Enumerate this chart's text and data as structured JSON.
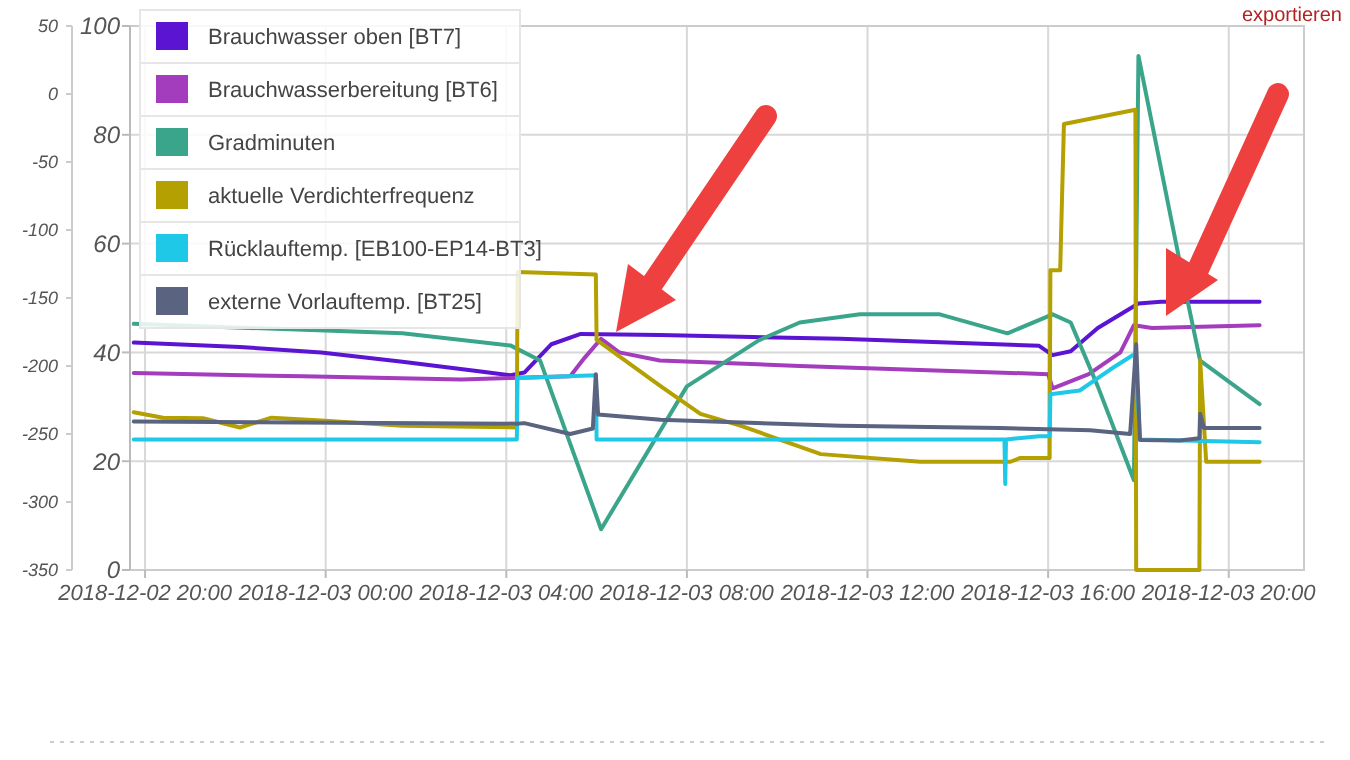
{
  "chart_data": {
    "type": "line",
    "xlim": [
      "2018-12-02T19:40",
      "2018-12-03T21:40"
    ],
    "xticks": [
      {
        "value": "2018-12-02T20:00",
        "label": "2018-12-02 20:00"
      },
      {
        "value": "2018-12-03T00:00",
        "label": "2018-12-03 00:00"
      },
      {
        "value": "2018-12-03T04:00",
        "label": "2018-12-03 04:00"
      },
      {
        "value": "2018-12-03T08:00",
        "label": "2018-12-03 08:00"
      },
      {
        "value": "2018-12-03T12:00",
        "label": "2018-12-03 12:00"
      },
      {
        "value": "2018-12-03T16:00",
        "label": "2018-12-03 16:00"
      },
      {
        "value": "2018-12-03T20:00",
        "label": "2018-12-03 20:00"
      }
    ],
    "ylim": [
      0,
      100
    ],
    "yticks": [
      0,
      20,
      40,
      60,
      80,
      100
    ],
    "y2lim": [
      -350,
      50
    ],
    "y2ticks": [
      -350,
      -300,
      -250,
      -200,
      -150,
      -100,
      -50,
      0,
      50
    ],
    "grid": true,
    "legend": "top left",
    "annotations": [
      "exportieren"
    ],
    "series": [
      {
        "name": "Brauchwasser oben [BT7]",
        "color": "#5a14d2",
        "x": [
          "2018-12-02T19:45",
          "2018-12-02T22:06",
          "2018-12-02T23:54",
          "2018-12-03T01:42",
          "2018-12-03T03:26",
          "2018-12-03T04:06",
          "2018-12-03T04:24",
          "2018-12-03T05:00",
          "2018-12-03T05:39",
          "2018-12-03T07:24",
          "2018-12-03T11:24",
          "2018-12-03T15:48",
          "2018-12-03T16:06",
          "2018-12-03T16:30",
          "2018-12-03T17:06",
          "2018-12-03T18:00",
          "2018-12-03T18:30",
          "2018-12-03T20:41"
        ],
        "values": [
          41.8,
          41.0,
          40.0,
          38.3,
          36.5,
          35.8,
          36.3,
          41.5,
          43.4,
          43.2,
          42.5,
          41.2,
          39.5,
          40.2,
          44.5,
          49.0,
          49.3,
          49.3
        ]
      },
      {
        "name": "Brauchwasserbereitung [BT6]",
        "color": "#a43cbe",
        "x": [
          "2018-12-02T19:45",
          "2018-12-02T23:30",
          "2018-12-03T03:00",
          "2018-12-03T04:06",
          "2018-12-03T05:25",
          "2018-12-03T05:44",
          "2018-12-03T06:06",
          "2018-12-03T06:30",
          "2018-12-03T07:24",
          "2018-12-03T10:30",
          "2018-12-03T16:00",
          "2018-12-03T16:06",
          "2018-12-03T16:54",
          "2018-12-03T17:36",
          "2018-12-03T17:54",
          "2018-12-03T18:18",
          "2018-12-03T20:41"
        ],
        "values": [
          36.2,
          35.6,
          35.0,
          35.3,
          35.6,
          39.0,
          42.5,
          40.0,
          38.5,
          37.5,
          36.0,
          33.4,
          36.0,
          40.0,
          45.0,
          44.5,
          45.0
        ]
      },
      {
        "name": "Gradminuten",
        "color": "#3aa58a",
        "axis": "y2",
        "x": [
          "2018-12-02T19:45",
          "2018-12-03T01:42",
          "2018-12-03T04:06",
          "2018-12-03T04:45",
          "2018-12-03T06:06",
          "2018-12-03T08:00",
          "2018-12-03T09:36",
          "2018-12-03T10:30",
          "2018-12-03T11:50",
          "2018-12-03T13:36",
          "2018-12-03T15:06",
          "2018-12-03T16:06",
          "2018-12-03T16:30",
          "2018-12-03T17:06",
          "2018-12-03T17:54",
          "2018-12-03T18:00",
          "2018-12-03T19:06",
          "2018-12-03T19:22",
          "2018-12-03T20:41"
        ],
        "values": [
          -169,
          -176,
          -185,
          -196,
          -320,
          -215,
          -181,
          -168,
          -162,
          -162,
          -176,
          -162,
          -168,
          -215,
          -284,
          28,
          -154,
          -196,
          -228
        ]
      },
      {
        "name": "aktuelle Verdichterfrequenz",
        "color": "#b4a000",
        "x": [
          "2018-12-02T19:45",
          "2018-12-02T20:24",
          "2018-12-02T21:17",
          "2018-12-02T22:06",
          "2018-12-02T22:48",
          "2018-12-02T23:54",
          "2018-12-03T01:42",
          "2018-12-03T04:14",
          "2018-12-03T04:15",
          "2018-12-03T05:59",
          "2018-12-03T06:00",
          "2018-12-03T07:25",
          "2018-12-03T08:18",
          "2018-12-03T09:12",
          "2018-12-03T10:58",
          "2018-12-03T13:10",
          "2018-12-03T15:10",
          "2018-12-03T15:23",
          "2018-12-03T16:02",
          "2018-12-03T16:03",
          "2018-12-03T16:16",
          "2018-12-03T16:21",
          "2018-12-03T17:56",
          "2018-12-03T17:57",
          "2018-12-03T19:21",
          "2018-12-03T19:22",
          "2018-12-03T19:30",
          "2018-12-03T20:41"
        ],
        "values": [
          29.0,
          28.0,
          27.9,
          26.2,
          28.0,
          27.5,
          26.5,
          26.2,
          54.8,
          54.3,
          42.3,
          33.8,
          28.7,
          26.5,
          21.3,
          19.9,
          19.9,
          20.6,
          20.6,
          55.1,
          55.1,
          82.0,
          84.6,
          0,
          0,
          38.6,
          19.9,
          19.9
        ]
      },
      {
        "name": "Rücklauftemp. [EB100-EP14-BT3]",
        "color": "#1ec8e6",
        "x": [
          "2018-12-02T19:45",
          "2018-12-03T04:14",
          "2018-12-03T04:15",
          "2018-12-03T05:59",
          "2018-12-03T06:00",
          "2018-12-03T15:02",
          "2018-12-03T15:03",
          "2018-12-03T15:04",
          "2018-12-03T15:48",
          "2018-12-03T16:02",
          "2018-12-03T16:03",
          "2018-12-03T16:42",
          "2018-12-03T17:22",
          "2018-12-03T17:56",
          "2018-12-03T18:02",
          "2018-12-03T20:41"
        ],
        "values": [
          24.0,
          24.0,
          35.3,
          35.8,
          24.0,
          24.0,
          15.8,
          24.0,
          24.6,
          24.6,
          32.3,
          33.0,
          36.8,
          39.8,
          24.0,
          23.5
        ]
      },
      {
        "name": "externe Vorlauftemp. [BT25]",
        "color": "#5a6480",
        "x": [
          "2018-12-02T19:45",
          "2018-12-03T04:14",
          "2018-12-03T04:24",
          "2018-12-03T05:25",
          "2018-12-03T05:55",
          "2018-12-03T05:59",
          "2018-12-03T06:02",
          "2018-12-03T07:25",
          "2018-12-03T11:24",
          "2018-12-03T14:56",
          "2018-12-03T16:56",
          "2018-12-03T17:49",
          "2018-12-03T17:57",
          "2018-12-03T18:02",
          "2018-12-03T18:55",
          "2018-12-03T19:21",
          "2018-12-03T19:22",
          "2018-12-03T19:27",
          "2018-12-03T20:41"
        ],
        "values": [
          27.3,
          26.9,
          27.0,
          25.0,
          26.0,
          36.0,
          28.6,
          27.6,
          26.5,
          26.1,
          25.7,
          25.0,
          41.5,
          23.9,
          23.8,
          24.2,
          28.7,
          26.1,
          26.1
        ]
      }
    ]
  }
}
